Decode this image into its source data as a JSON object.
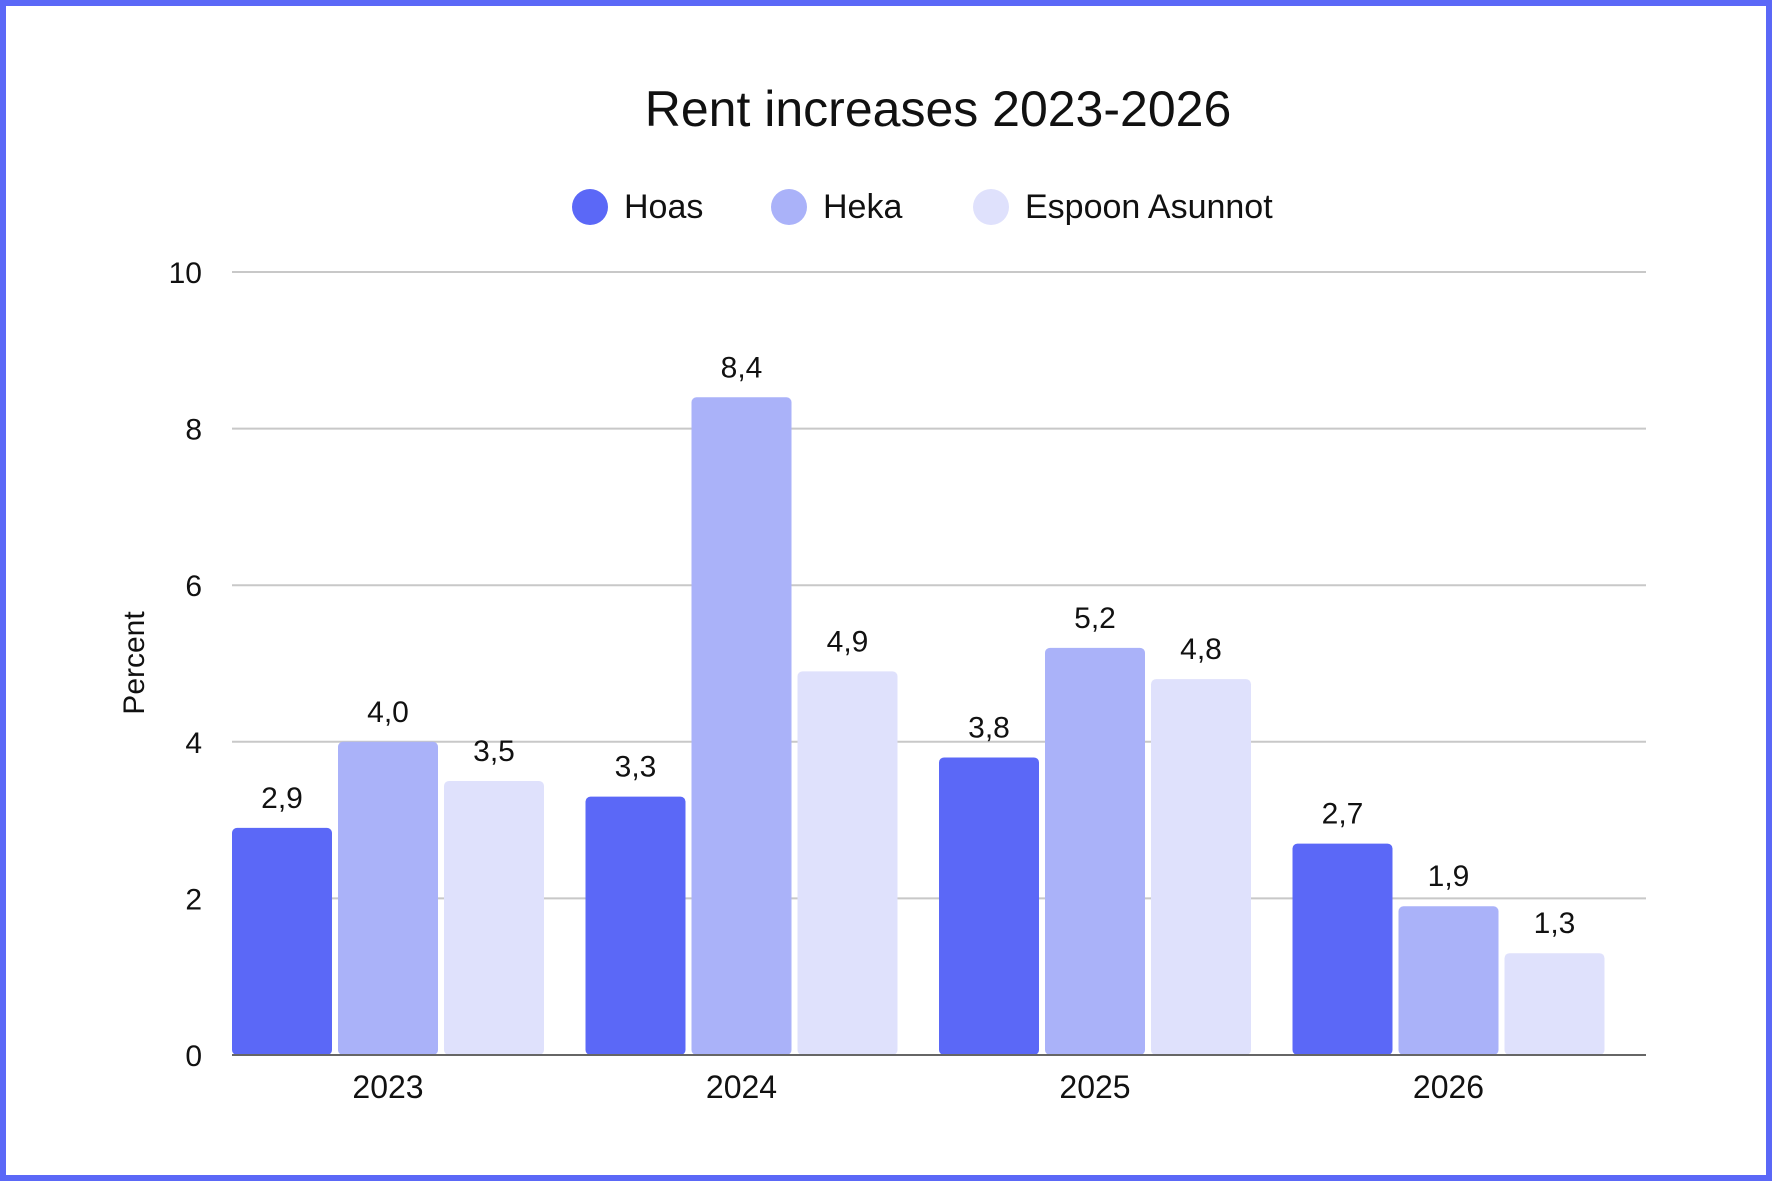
{
  "chart_data": {
    "type": "bar",
    "title": "Rent increases 2023-2026",
    "ylabel": "Percent",
    "xlabel": "",
    "categories": [
      "2023",
      "2024",
      "2025",
      "2026"
    ],
    "series": [
      {
        "name": "Hoas",
        "color": "#5b68f7",
        "values": [
          2.9,
          3.3,
          3.8,
          2.7
        ],
        "labels": [
          "2,9",
          "3,3",
          "3,8",
          "2,7"
        ]
      },
      {
        "name": "Heka",
        "color": "#aab2f9",
        "values": [
          4.0,
          8.4,
          5.2,
          1.9
        ],
        "labels": [
          "4,0",
          "8,4",
          "5,2",
          "1,9"
        ]
      },
      {
        "name": "Espoon Asunnot",
        "color": "#dfe1fc",
        "values": [
          3.5,
          4.9,
          4.8,
          1.3
        ],
        "labels": [
          "3,5",
          "4,9",
          "4,8",
          "1,3"
        ]
      }
    ],
    "ylim": [
      0,
      10
    ],
    "yticks": [
      0,
      2,
      4,
      6,
      8,
      10
    ],
    "grid": true,
    "legend": "top-center"
  }
}
